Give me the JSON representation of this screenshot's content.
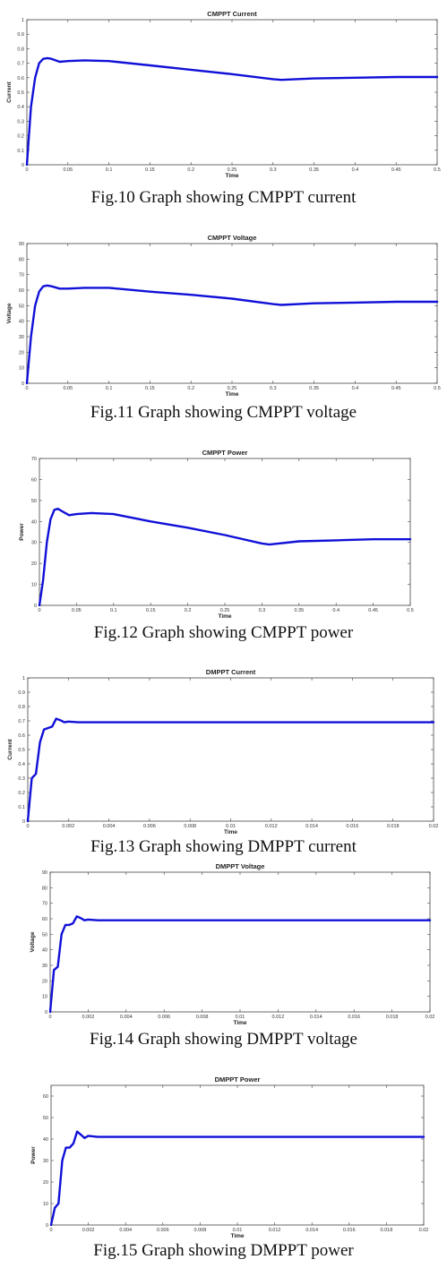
{
  "figures": [
    {
      "caption": "Fig.10 Graph showing CMPPT current"
    },
    {
      "caption": "Fig.11 Graph showing CMPPT voltage"
    },
    {
      "caption": "Fig.12 Graph showing CMPPT power"
    },
    {
      "caption": "Fig.13 Graph showing DMPPT current"
    },
    {
      "caption": "Fig.14 Graph showing DMPPT voltage"
    },
    {
      "caption": "Fig.15 Graph showing DMPPT power"
    }
  ],
  "chart_data": [
    {
      "type": "line",
      "title": "CMPPT Current",
      "xlabel": "Time",
      "ylabel": "Current",
      "xlim": [
        0,
        0.5
      ],
      "ylim": [
        0,
        1
      ],
      "xticks": [
        "0",
        "0.05",
        "0.1",
        "0.15",
        "0.2",
        "0.25",
        "0.3",
        "0.35",
        "0.4",
        "0.45",
        "0.5"
      ],
      "yticks": [
        "0",
        "0.1",
        "0.2",
        "0.3",
        "0.4",
        "0.5",
        "0.6",
        "0.7",
        "0.8",
        "0.9",
        "1"
      ],
      "series": [
        {
          "color": "#1010d8",
          "x": [
            0,
            0.005,
            0.01,
            0.015,
            0.02,
            0.025,
            0.03,
            0.04,
            0.05,
            0.07,
            0.1,
            0.15,
            0.2,
            0.25,
            0.3,
            0.31,
            0.35,
            0.4,
            0.45,
            0.5
          ],
          "y": [
            0,
            0.4,
            0.6,
            0.7,
            0.73,
            0.735,
            0.73,
            0.71,
            0.715,
            0.72,
            0.715,
            0.685,
            0.655,
            0.625,
            0.59,
            0.585,
            0.595,
            0.6,
            0.605,
            0.605
          ]
        }
      ]
    },
    {
      "type": "line",
      "title": "CMPPT Voltage",
      "xlabel": "Time",
      "ylabel": "Voltage",
      "xlim": [
        0,
        0.5
      ],
      "ylim": [
        0,
        90
      ],
      "xticks": [
        "0",
        "0.05",
        "0.1",
        "0.15",
        "0.2",
        "0.25",
        "0.3",
        "0.35",
        "0.4",
        "0.45",
        "0.5"
      ],
      "yticks": [
        "0",
        "10",
        "20",
        "30",
        "40",
        "50",
        "60",
        "70",
        "80",
        "90"
      ],
      "series": [
        {
          "color": "#1010d8",
          "x": [
            0,
            0.005,
            0.01,
            0.015,
            0.02,
            0.025,
            0.03,
            0.04,
            0.05,
            0.07,
            0.1,
            0.15,
            0.2,
            0.25,
            0.3,
            0.31,
            0.35,
            0.4,
            0.45,
            0.5
          ],
          "y": [
            0,
            30,
            50,
            59,
            62.5,
            63,
            62.5,
            61,
            61,
            61.5,
            61.5,
            59,
            57,
            54.5,
            51,
            50.5,
            51.5,
            52,
            52.5,
            52.5
          ]
        }
      ]
    },
    {
      "type": "line",
      "title": "CMPPT Power",
      "xlabel": "Time",
      "ylabel": "Power",
      "xlim": [
        0,
        0.5
      ],
      "ylim": [
        0,
        70
      ],
      "xticks": [
        "0",
        "0.05",
        "0.1",
        "0.15",
        "0.2",
        "0.25",
        "0.3",
        "0.35",
        "0.4",
        "0.45",
        "0.5"
      ],
      "yticks": [
        "0",
        "10",
        "20",
        "30",
        "40",
        "50",
        "60",
        "70"
      ],
      "series": [
        {
          "color": "#1010d8",
          "x": [
            0,
            0.005,
            0.01,
            0.015,
            0.02,
            0.025,
            0.03,
            0.04,
            0.05,
            0.07,
            0.1,
            0.15,
            0.2,
            0.25,
            0.3,
            0.31,
            0.35,
            0.4,
            0.45,
            0.5
          ],
          "y": [
            0,
            12,
            30,
            41,
            45.5,
            46,
            45,
            43,
            43.5,
            44,
            43.5,
            40,
            37,
            33.5,
            29.5,
            29,
            30.5,
            31,
            31.5,
            31.5
          ]
        }
      ]
    },
    {
      "type": "line",
      "title": "DMPPT Current",
      "xlabel": "Time",
      "ylabel": "Current",
      "xlim": [
        0,
        0.02
      ],
      "ylim": [
        0,
        1
      ],
      "xticks": [
        "0",
        "0.002",
        "0.004",
        "0.006",
        "0.008",
        "0.01",
        "0.012",
        "0.014",
        "0.016",
        "0.018",
        "0.02"
      ],
      "yticks": [
        "0",
        "0.1",
        "0.2",
        "0.3",
        "0.4",
        "0.5",
        "0.6",
        "0.7",
        "0.8",
        "0.9",
        "1"
      ],
      "series": [
        {
          "color": "#1010d8",
          "x": [
            0,
            0.0002,
            0.0004,
            0.0006,
            0.0008,
            0.001,
            0.0012,
            0.0014,
            0.0016,
            0.0018,
            0.002,
            0.0025,
            0.003,
            0.02
          ],
          "y": [
            0,
            0.3,
            0.33,
            0.55,
            0.64,
            0.65,
            0.66,
            0.715,
            0.705,
            0.69,
            0.695,
            0.69,
            0.69,
            0.69
          ]
        }
      ]
    },
    {
      "type": "line",
      "title": "DMPPT Voltage",
      "xlabel": "Time",
      "ylabel": "Voltage",
      "xlim": [
        0,
        0.02
      ],
      "ylim": [
        0,
        90
      ],
      "xticks": [
        "0",
        "0.002",
        "0.004",
        "0.006",
        "0.008",
        "0.01",
        "0.012",
        "0.014",
        "0.016",
        "0.018",
        "0.02"
      ],
      "yticks": [
        "0",
        "10",
        "20",
        "30",
        "40",
        "50",
        "60",
        "70",
        "80",
        "90"
      ],
      "series": [
        {
          "color": "#1010d8",
          "x": [
            0,
            0.0002,
            0.0004,
            0.0006,
            0.0008,
            0.001,
            0.0012,
            0.0014,
            0.0016,
            0.0018,
            0.002,
            0.0025,
            0.003,
            0.02
          ],
          "y": [
            0,
            27,
            29,
            50,
            56,
            56,
            57,
            61.5,
            60.5,
            59,
            59.5,
            59,
            59,
            59
          ]
        }
      ]
    },
    {
      "type": "line",
      "title": "DMPPT Power",
      "xlabel": "Time",
      "ylabel": "Power",
      "xlim": [
        0,
        0.02
      ],
      "ylim": [
        0,
        65
      ],
      "xticks": [
        "0",
        "0.002",
        "0.004",
        "0.006",
        "0.008",
        "0.01",
        "0.012",
        "0.014",
        "0.016",
        "0.018",
        "0.02"
      ],
      "yticks": [
        "0",
        "10",
        "20",
        "30",
        "40",
        "50",
        "60"
      ],
      "series": [
        {
          "color": "#1010d8",
          "x": [
            0,
            0.0002,
            0.0004,
            0.0006,
            0.0008,
            0.001,
            0.0012,
            0.0014,
            0.0016,
            0.0018,
            0.002,
            0.0025,
            0.003,
            0.02
          ],
          "y": [
            0,
            8,
            10,
            30,
            36,
            36,
            38,
            43.5,
            42,
            40.5,
            41.5,
            41,
            41,
            41
          ]
        }
      ]
    }
  ]
}
